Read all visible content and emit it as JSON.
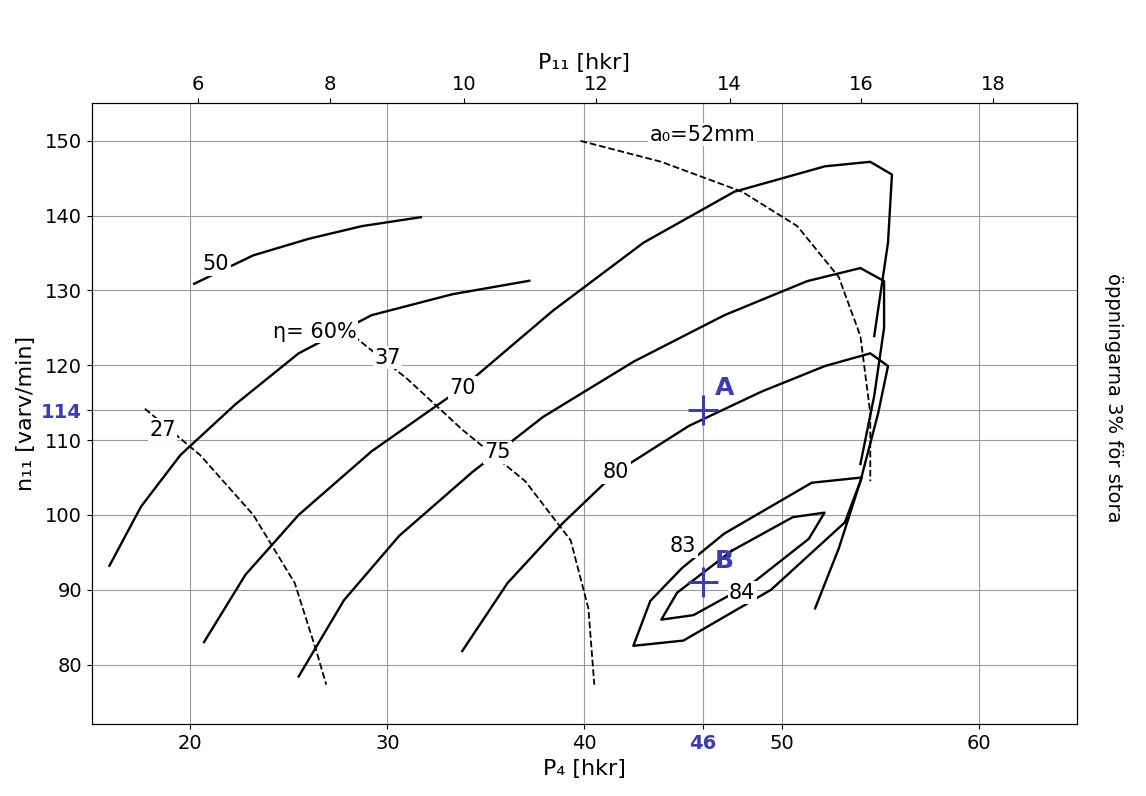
{
  "chart_data": {
    "type": "line",
    "xlabel": "P₄ [hkr]",
    "ylabel": "n₁₁ [varv/min]",
    "x2label": "P₁₁ [hkr]",
    "note": "öppningarna 3% för stora",
    "xlim": [
      15,
      65
    ],
    "ylim": [
      72,
      155
    ],
    "xticks": [
      20,
      30,
      40,
      46,
      50,
      60
    ],
    "yticks": [
      80,
      90,
      100,
      110,
      114,
      120,
      130,
      140,
      150
    ],
    "x2ticks": [
      {
        "value": 20.37,
        "label": "6"
      },
      {
        "value": 27.08,
        "label": "8"
      },
      {
        "value": 33.89,
        "label": "10"
      },
      {
        "value": 40.6,
        "label": "12"
      },
      {
        "value": 47.36,
        "label": "14"
      },
      {
        "value": 54.02,
        "label": "16"
      },
      {
        "value": 60.74,
        "label": "18"
      }
    ],
    "grid": true,
    "color": "#000000",
    "series": [
      {
        "type": "line",
        "line_style": "solid",
        "x": [
          20.2,
          23.2,
          26.0,
          28.7,
          31.7
        ],
        "values": [
          130.9,
          134.7,
          136.9,
          138.6,
          139.8
        ]
      },
      {
        "type": "line",
        "line_style": "solid",
        "x": [
          15.9,
          17.5,
          19.5,
          22.3,
          25.5,
          29.2,
          33.3,
          37.2
        ],
        "values": [
          93.2,
          101.1,
          108.0,
          114.8,
          121.6,
          126.7,
          129.5,
          131.3
        ]
      },
      {
        "type": "line",
        "line_style": "solid",
        "x": [
          20.7,
          22.8,
          25.5,
          29.2,
          33.8,
          38.4,
          43.0,
          47.6,
          52.2,
          54.5,
          55.6,
          55.4,
          54.7
        ],
        "values": [
          83.0,
          92.0,
          100.0,
          108.5,
          117.0,
          127.3,
          136.4,
          143.2,
          146.6,
          147.2,
          145.5,
          136.4,
          123.9
        ]
      },
      {
        "type": "line",
        "line_style": "solid",
        "x": [
          25.5,
          27.8,
          30.6,
          34.3,
          37.9,
          42.5,
          47.1,
          51.3,
          54.0,
          55.2,
          55.2,
          54.7,
          54.0
        ],
        "values": [
          78.4,
          88.6,
          97.2,
          105.7,
          113.1,
          120.5,
          126.7,
          131.25,
          133.0,
          131.25,
          125.0,
          115.9,
          106.8
        ]
      },
      {
        "type": "line",
        "line_style": "solid",
        "x": [
          33.8,
          36.1,
          38.9,
          41.6,
          45.3,
          49.0,
          52.2,
          54.5,
          55.4,
          54.9,
          54.0,
          52.9,
          51.7
        ],
        "values": [
          81.8,
          90.9,
          98.9,
          105.7,
          111.9,
          116.5,
          119.9,
          121.6,
          119.9,
          113.6,
          104.5,
          95.5,
          87.5
        ]
      },
      {
        "type": "line",
        "line_style": "solid",
        "x": [
          53.21,
          49.47,
          45.02,
          42.48,
          43.34,
          44.95,
          47.09,
          51.53,
          54.07,
          53.21
        ],
        "values": [
          99.0,
          90.0,
          83.2,
          82.5,
          88.5,
          92.9,
          97.5,
          104.3,
          105.0,
          99.0
        ]
      },
      {
        "type": "line",
        "line_style": "solid",
        "x": [
          47.47,
          50.57,
          52.18,
          51.38,
          48.63,
          45.53,
          43.9,
          44.7,
          47.47
        ],
        "values": [
          95.2,
          99.7,
          100.3,
          96.8,
          91.1,
          86.6,
          86.0,
          89.6,
          95.2
        ]
      },
      {
        "type": "line",
        "line_style": "dashed",
        "x": [
          17.7,
          20.5,
          23.2,
          25.3,
          26.4,
          26.9
        ],
        "values": [
          114.2,
          108.0,
          100.0,
          90.9,
          81.8,
          77.3
        ]
      },
      {
        "type": "line",
        "line_style": "dashed",
        "x": [
          28.3,
          31.0,
          33.8,
          37.0,
          39.3,
          40.2,
          40.5
        ],
        "values": [
          123.9,
          118.2,
          111.4,
          104.5,
          96.6,
          87.5,
          77.3
        ]
      },
      {
        "type": "line",
        "line_style": "dashed",
        "x": [
          39.8,
          43.9,
          48.0,
          50.8,
          52.9,
          54.0,
          54.5,
          54.5
        ],
        "values": [
          150.0,
          147.2,
          143.2,
          138.6,
          131.8,
          123.9,
          113.6,
          104.5
        ]
      },
      {
        "type": "scatter",
        "name": "A",
        "marker": "plus",
        "color": "#3c3cb4",
        "x": [
          46
        ],
        "values": [
          114
        ]
      },
      {
        "type": "scatter",
        "name": "B",
        "marker": "plus",
        "color": "#3c3cb4",
        "x": [
          46
        ],
        "values": [
          91
        ]
      }
    ],
    "annotations": [
      {
        "text": "50",
        "x": 21.3,
        "y": 133.5
      },
      {
        "text": "η= 60%",
        "x": 26.3,
        "y": 124.5
      },
      {
        "text": "70",
        "x": 33.8,
        "y": 117.0
      },
      {
        "text": "75",
        "x": 35.6,
        "y": 108.4
      },
      {
        "text": "80",
        "x": 41.6,
        "y": 105.7
      },
      {
        "text": "83",
        "x": 45.0,
        "y": 95.8
      },
      {
        "text": "84",
        "x": 48.0,
        "y": 89.6
      },
      {
        "text": "27",
        "x": 18.6,
        "y": 111.4
      },
      {
        "text": "37",
        "x": 30.0,
        "y": 121.0
      },
      {
        "text": "a₀=52mm",
        "x": 46.0,
        "y": 150.8
      }
    ]
  }
}
